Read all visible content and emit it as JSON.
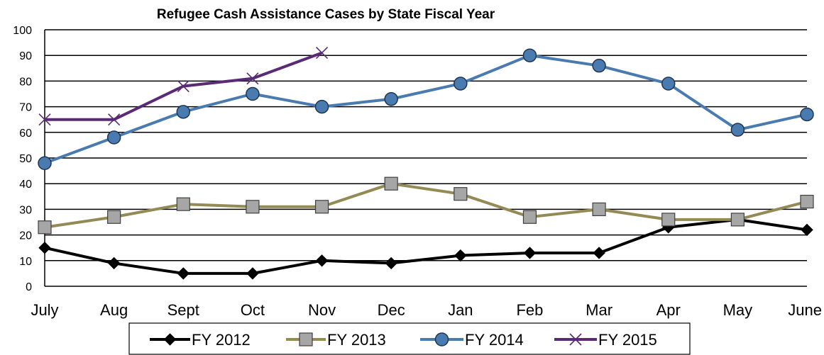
{
  "chart_data": {
    "type": "line",
    "title": "Refugee Cash Assistance Cases by State Fiscal Year",
    "xlabel": "",
    "ylabel": "",
    "ylim": [
      0,
      100
    ],
    "yticks": [
      0,
      10,
      20,
      30,
      40,
      50,
      60,
      70,
      80,
      90,
      100
    ],
    "grid": "horizontal",
    "legend_position": "bottom",
    "categories": [
      "July",
      "Aug",
      "Sept",
      "Oct",
      "Nov",
      "Dec",
      "Jan",
      "Feb",
      "Mar",
      "Apr",
      "May",
      "June"
    ],
    "series": [
      {
        "name": "FY 2012",
        "color": "#000000",
        "marker": "diamond",
        "values": [
          15,
          9,
          5,
          5,
          10,
          9,
          12,
          13,
          13,
          23,
          26,
          22
        ]
      },
      {
        "name": "FY 2013",
        "color": "#948A54",
        "marker": "square",
        "values": [
          23,
          27,
          32,
          31,
          31,
          40,
          36,
          27,
          30,
          26,
          26,
          33
        ]
      },
      {
        "name": "FY 2014",
        "color": "#4A7BB0",
        "marker": "circle",
        "values": [
          48,
          58,
          68,
          75,
          70,
          73,
          79,
          90,
          86,
          79,
          61,
          67
        ]
      },
      {
        "name": "FY 2015",
        "color": "#5B2A76",
        "marker": "x",
        "values": [
          65,
          65,
          78,
          81,
          91,
          null,
          null,
          null,
          null,
          null,
          null,
          null
        ]
      }
    ]
  }
}
